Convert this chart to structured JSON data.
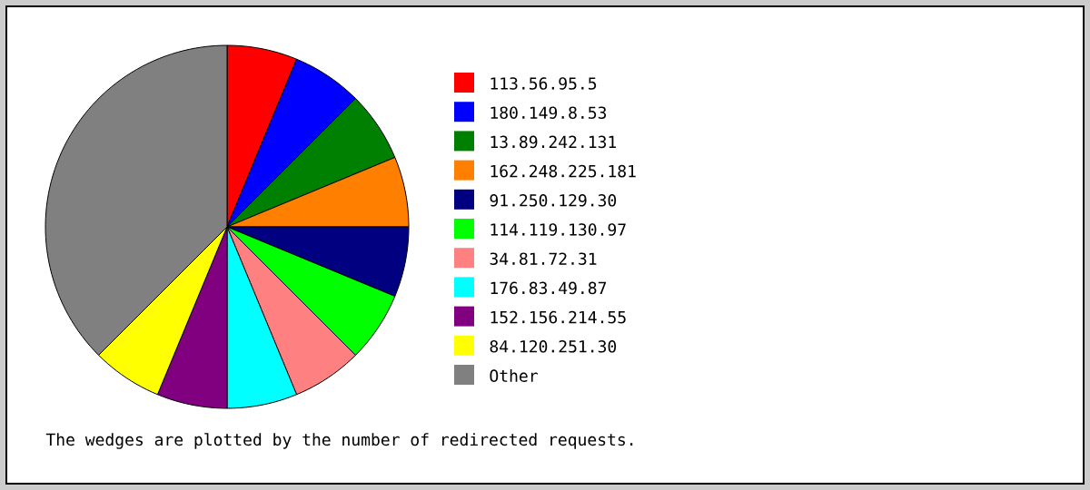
{
  "chart_data": {
    "type": "pie",
    "categories": [
      "113.56.95.5",
      "180.149.8.53",
      "13.89.242.131",
      "162.248.225.181",
      "91.250.129.30",
      "114.119.130.97",
      "34.81.72.31",
      "176.83.49.87",
      "152.156.214.55",
      "84.120.251.30",
      "Other"
    ],
    "values": [
      6.25,
      6.25,
      6.25,
      6.25,
      6.25,
      6.25,
      6.25,
      6.25,
      6.25,
      6.25,
      37.5
    ],
    "colors": [
      "#ff0000",
      "#0000ff",
      "#008000",
      "#ff8000",
      "#000080",
      "#00ff00",
      "#ff8080",
      "#00ffff",
      "#800080",
      "#ffff00",
      "#808080"
    ],
    "legend": "right",
    "annotations": [
      "The wedges are plotted by the number of redirected requests."
    ]
  }
}
